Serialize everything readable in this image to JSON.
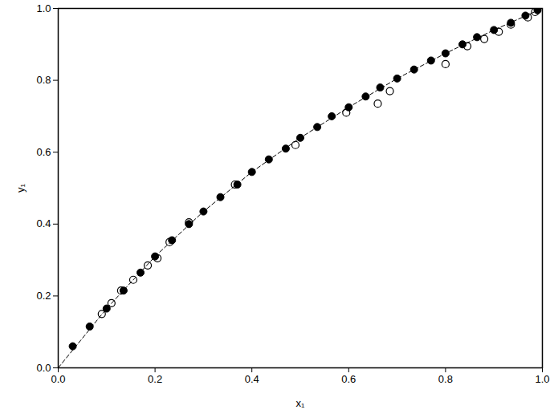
{
  "chart_data": {
    "type": "scatter",
    "x_label": "x₁",
    "y_label": "y₁",
    "xlim": [
      0,
      1
    ],
    "ylim": [
      0,
      1
    ],
    "xticks": [
      {
        "value": 0,
        "label": "0.0"
      },
      0.2,
      0.4,
      0.6,
      0.8,
      {
        "value": 1,
        "label": "1.0"
      }
    ],
    "yticks": [
      {
        "value": 0,
        "label": "0.0"
      },
      0.2,
      0.4,
      0.6,
      0.8,
      {
        "value": 1,
        "label": "1.0"
      }
    ],
    "grid": false,
    "series": [
      {
        "type": "line",
        "line_style": "dashed",
        "color": "#000000",
        "x": [
          0,
          0.1,
          0.2,
          0.3,
          0.4,
          0.5,
          0.6,
          0.7,
          0.8,
          0.9,
          1.0
        ],
        "values": [
          0,
          0.165,
          0.31,
          0.435,
          0.545,
          0.64,
          0.725,
          0.805,
          0.875,
          0.94,
          1.0
        ]
      },
      {
        "type": "scatter",
        "marker": "filled_circle",
        "color": "#000000",
        "x": [
          0.03,
          0.065,
          0.1,
          0.135,
          0.17,
          0.2,
          0.235,
          0.27,
          0.3,
          0.335,
          0.37,
          0.4,
          0.435,
          0.47,
          0.5,
          0.535,
          0.565,
          0.6,
          0.635,
          0.665,
          0.7,
          0.735,
          0.77,
          0.8,
          0.835,
          0.865,
          0.9,
          0.935,
          0.965,
          0.99
        ],
        "values": [
          0.06,
          0.115,
          0.165,
          0.215,
          0.265,
          0.31,
          0.355,
          0.4,
          0.435,
          0.475,
          0.51,
          0.545,
          0.58,
          0.61,
          0.64,
          0.67,
          0.7,
          0.725,
          0.755,
          0.78,
          0.805,
          0.83,
          0.855,
          0.875,
          0.9,
          0.92,
          0.94,
          0.96,
          0.98,
          0.995
        ]
      },
      {
        "type": "scatter",
        "marker": "open_circle",
        "color": "#000000",
        "x": [
          0.09,
          0.11,
          0.13,
          0.155,
          0.185,
          0.205,
          0.23,
          0.27,
          0.365,
          0.49,
          0.595,
          0.66,
          0.685,
          0.8,
          0.845,
          0.88,
          0.91,
          0.935,
          0.97,
          0.985
        ],
        "values": [
          0.15,
          0.18,
          0.215,
          0.245,
          0.285,
          0.305,
          0.35,
          0.405,
          0.51,
          0.62,
          0.71,
          0.735,
          0.77,
          0.845,
          0.895,
          0.915,
          0.935,
          0.955,
          0.975,
          0.99
        ]
      }
    ]
  }
}
